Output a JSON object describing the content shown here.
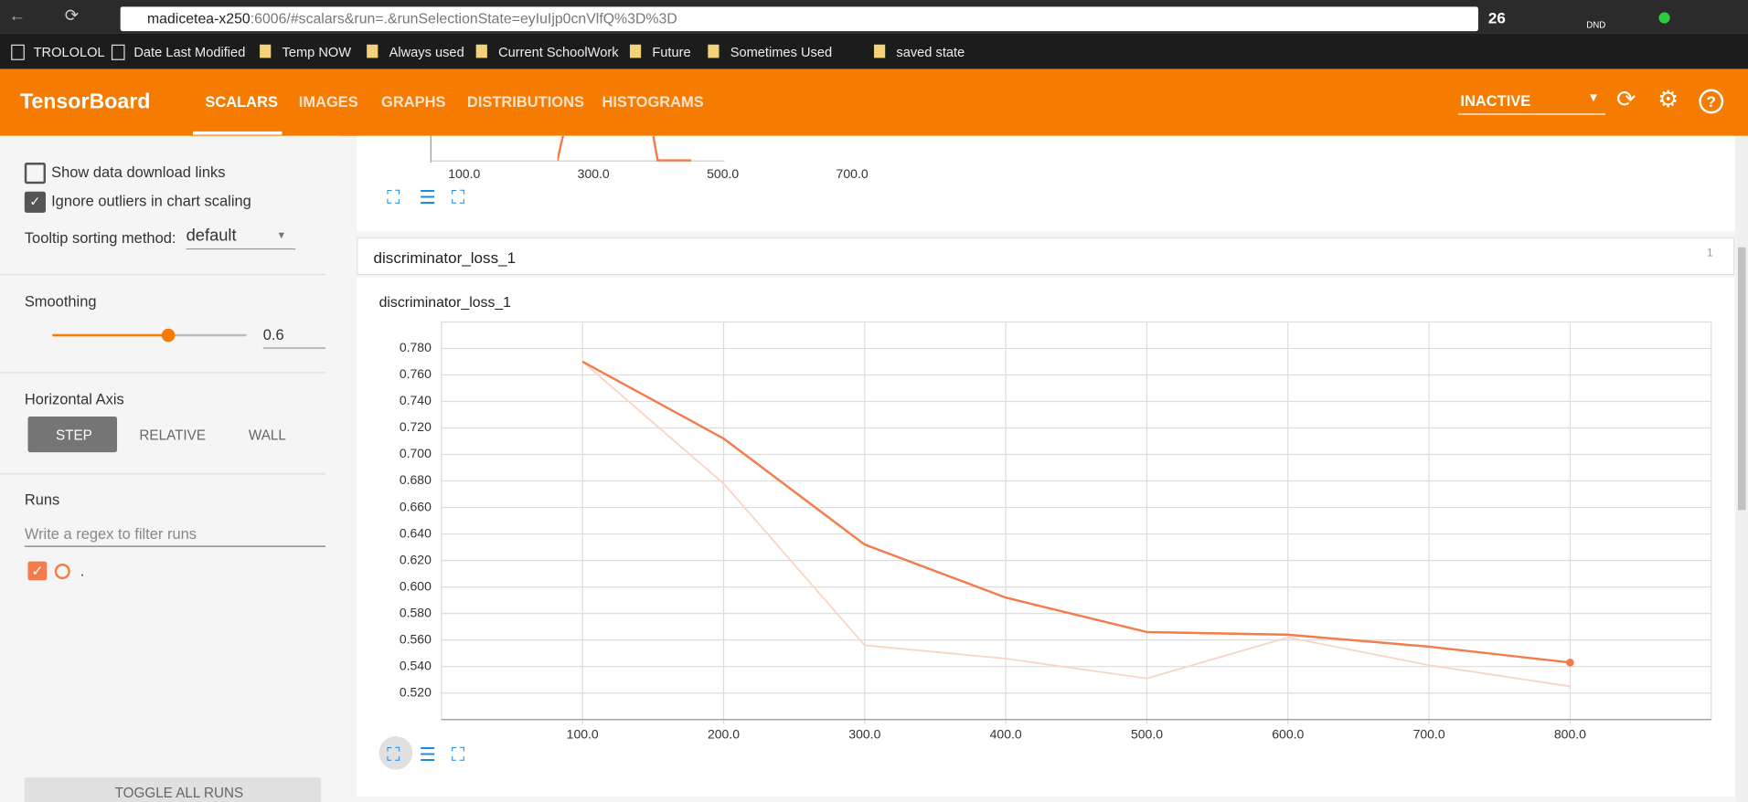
{
  "browser": {
    "url_host": "madicetea-x250",
    "url_rest": ":6006/#scalars&run=.&runSelectionState=eyIuIjp0cnVlfQ%3D%3D",
    "badge": "26",
    "dnd": "DND"
  },
  "bookmarks": [
    "TROLOLOL",
    "Date Last Modified",
    "Temp NOW",
    "Always used",
    "Current SchoolWork",
    "Future",
    "Sometimes Used",
    "saved state"
  ],
  "header": {
    "title": "TensorBoard",
    "tabs": [
      "SCALARS",
      "IMAGES",
      "GRAPHS",
      "DISTRIBUTIONS",
      "HISTOGRAMS"
    ],
    "run_selector": "INACTIVE"
  },
  "sidebar": {
    "show_download": "Show data download links",
    "ignore_outliers": "Ignore outliers in chart scaling",
    "tooltip_label": "Tooltip sorting method:",
    "tooltip_value": "default",
    "smoothing_label": "Smoothing",
    "smoothing_value": 0.6,
    "horizontal_axis_label": "Horizontal Axis",
    "axis_options": [
      "STEP",
      "RELATIVE",
      "WALL"
    ],
    "runs_label": "Runs",
    "filter_placeholder": "Write a regex to filter runs",
    "run_name": ".",
    "toggle": "TOGGLE ALL RUNS"
  },
  "previous_card": {
    "ticks": [
      "100.0",
      "300.0",
      "500.0",
      "700.0"
    ]
  },
  "card": {
    "group_title": "discriminator_loss_1",
    "count": "1"
  },
  "chart_data": {
    "type": "line",
    "title": "discriminator_loss_1",
    "x": [
      100,
      200,
      300,
      400,
      500,
      600,
      700,
      800
    ],
    "series": [
      {
        "color": "#f47b4a",
        "values": [
          0.77,
          0.712,
          0.632,
          0.592,
          0.566,
          0.564,
          0.555,
          0.543
        ]
      },
      {
        "color": "#f9d5c4",
        "values": [
          0.77,
          0.678,
          0.556,
          0.546,
          0.531,
          0.562,
          0.541,
          0.525
        ]
      }
    ],
    "xlim": [
      0,
      900
    ],
    "ylim": [
      0.5,
      0.8
    ],
    "xticks": [
      {
        "value": 100,
        "label": "100.0"
      },
      {
        "value": 200,
        "label": "200.0"
      },
      {
        "value": 300,
        "label": "300.0"
      },
      {
        "value": 400,
        "label": "400.0"
      },
      {
        "value": 500,
        "label": "500.0"
      },
      {
        "value": 600,
        "label": "600.0"
      },
      {
        "value": 700,
        "label": "700.0"
      },
      {
        "value": 800,
        "label": "800.0"
      }
    ],
    "yticks": [
      {
        "value": 0.52,
        "label": "0.520"
      },
      {
        "value": 0.54,
        "label": "0.540"
      },
      {
        "value": 0.56,
        "label": "0.560"
      },
      {
        "value": 0.58,
        "label": "0.580"
      },
      {
        "value": 0.6,
        "label": "0.600"
      },
      {
        "value": 0.62,
        "label": "0.620"
      },
      {
        "value": 0.64,
        "label": "0.640"
      },
      {
        "value": 0.66,
        "label": "0.660"
      },
      {
        "value": 0.68,
        "label": "0.680"
      },
      {
        "value": 0.7,
        "label": "0.700"
      },
      {
        "value": 0.72,
        "label": "0.720"
      },
      {
        "value": 0.74,
        "label": "0.740"
      },
      {
        "value": 0.76,
        "label": "0.760"
      },
      {
        "value": 0.78,
        "label": "0.780"
      }
    ],
    "grid": true
  }
}
